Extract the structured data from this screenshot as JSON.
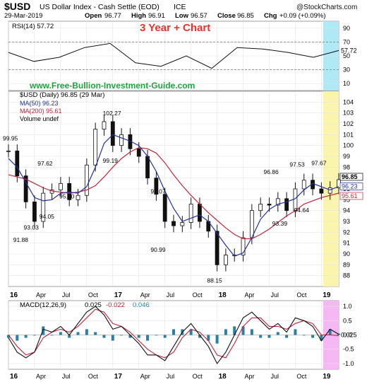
{
  "header": {
    "symbol": "$USD",
    "name": "US Dollar Index - Cash Settle (EOD)",
    "exchange": "ICE",
    "date": "29-Mar-2019",
    "quote_open_label": "Open",
    "quote_open": "96.77",
    "quote_high_label": "High",
    "quote_high": "96.91",
    "quote_low_label": "Low",
    "quote_low": "96.57",
    "quote_close_label": "Close",
    "quote_close": "96.85",
    "quote_chg_label": "Chg",
    "quote_chg": "+0.09 (+0.09%)",
    "brand": "@StockCharts.com"
  },
  "overlay": {
    "title": "3 Year + Chart",
    "site": "www.Free-Bullion-Investment-Guide.com"
  },
  "colors": {
    "rsi_highlight": "#aee9f5",
    "price_highlight": "#faf4ad",
    "macd_highlight": "#f5b8f5",
    "title_red": "#e8332b",
    "site_green": "#18a83a",
    "ma50": "#1f2f9c",
    "ma200": "#c0243c",
    "macd_hist": "#2a7fa6"
  },
  "chart_data": [
    {
      "type": "line",
      "panel": "rsi",
      "legend": "RSI(14) 57.72",
      "ylim": [
        0,
        100
      ],
      "y_ticks": [
        10,
        30,
        50,
        70,
        90
      ],
      "reference_lines": [
        30,
        70
      ],
      "last_value": "57.72",
      "x": [
        "2016-01",
        "2016-04",
        "2016-07",
        "2016-10",
        "2017-01",
        "2017-04",
        "2017-07",
        "2017-10",
        "2018-01",
        "2018-04",
        "2018-07",
        "2018-10",
        "2019-01",
        "2019-03"
      ],
      "values": [
        55,
        42,
        48,
        62,
        68,
        40,
        35,
        50,
        32,
        62,
        60,
        55,
        48,
        57.72
      ]
    },
    {
      "type": "candlestick",
      "panel": "price",
      "legend": {
        "price": "$USD (Daily) 96.85 (29 Mar)",
        "ma50": "MA(50) 96.23",
        "ma200": "MA(200) 95.61",
        "volume": "Volume undef"
      },
      "ylim": [
        87,
        105
      ],
      "y_ticks": [
        88,
        89,
        90,
        91,
        92,
        93,
        94,
        95,
        96,
        97,
        98,
        99,
        100,
        101,
        102,
        103,
        104
      ],
      "last_labels": [
        "96.85",
        "96.23",
        "95.61"
      ],
      "x_ticks": [
        "16",
        "Apr",
        "Jul",
        "Oct",
        "17",
        "Apr",
        "Jul",
        "Oct",
        "18",
        "Apr",
        "Jul",
        "Oct",
        "19"
      ],
      "annotations": [
        "99.95",
        "97.62",
        "95.90",
        "94.05",
        "93.03",
        "91.88",
        "102.27",
        "99.19",
        "95.07",
        "90.99",
        "88.15",
        "96.86",
        "97.53",
        "97.67",
        "93.39",
        "94.64"
      ],
      "close": {
        "x": [
          "2016-01",
          "2016-02",
          "2016-03",
          "2016-04",
          "2016-05",
          "2016-06",
          "2016-07",
          "2016-08",
          "2016-09",
          "2016-10",
          "2016-11",
          "2016-12",
          "2017-01",
          "2017-02",
          "2017-03",
          "2017-04",
          "2017-05",
          "2017-06",
          "2017-07",
          "2017-08",
          "2017-09",
          "2017-10",
          "2017-11",
          "2017-12",
          "2018-01",
          "2018-02",
          "2018-03",
          "2018-04",
          "2018-05",
          "2018-06",
          "2018-07",
          "2018-08",
          "2018-09",
          "2018-10",
          "2018-11",
          "2018-12",
          "2019-01",
          "2019-02",
          "2019-03"
        ],
        "values": [
          99.5,
          97.2,
          94.8,
          93.0,
          95.6,
          95.9,
          96.5,
          95.0,
          95.4,
          98.2,
          101.5,
          102.2,
          100.0,
          101.0,
          99.7,
          99.0,
          97.0,
          95.5,
          93.0,
          92.6,
          92.9,
          94.6,
          93.0,
          92.1,
          89.0,
          89.9,
          89.9,
          91.5,
          94.0,
          94.6,
          94.5,
          95.1,
          94.0,
          96.0,
          96.8,
          96.0,
          95.6,
          96.1,
          96.85
        ]
      },
      "ma50": [
        98.8,
        98.0,
        96.6,
        95.2,
        94.9,
        95.0,
        95.6,
        95.7,
        95.6,
        96.2,
        98.0,
        100.2,
        101.0,
        100.7,
        100.4,
        100.0,
        99.0,
        97.6,
        95.8,
        94.2,
        93.0,
        93.3,
        93.6,
        93.0,
        91.9,
        90.8,
        89.8,
        90.1,
        91.5,
        93.2,
        94.1,
        94.6,
        94.8,
        95.1,
        95.9,
        96.5,
        96.2,
        95.9,
        96.23
      ],
      "ma200": [
        97.3,
        97.1,
        96.9,
        96.5,
        96.1,
        95.8,
        95.7,
        95.6,
        95.7,
        95.9,
        96.3,
        97.1,
        98.0,
        98.8,
        99.4,
        99.8,
        99.7,
        99.3,
        98.4,
        97.3,
        96.3,
        95.4,
        94.6,
        93.8,
        93.1,
        92.4,
        91.8,
        91.4,
        91.4,
        91.8,
        92.3,
        92.9,
        93.5,
        94.0,
        94.6,
        94.9,
        95.2,
        95.4,
        95.61
      ]
    },
    {
      "type": "line",
      "panel": "macd",
      "legend": {
        "label": "MACD(12,26,9)",
        "macd": "0.025",
        "signal": "-0.022",
        "histogram": "0.046"
      },
      "ylim": [
        -1.2,
        1.2
      ],
      "y_ticks": [
        1.0,
        0.5,
        0.0,
        -0.5,
        -1.0
      ],
      "y_tick_labels": [
        "1.0",
        "0.5",
        "0.0",
        "-0.5",
        "-1.0"
      ],
      "last_value": "0.025",
      "x_ticks": [
        "16",
        "Apr",
        "Jul",
        "Oct",
        "17",
        "Apr",
        "Jul",
        "Oct",
        "18",
        "Apr",
        "Jul",
        "Oct",
        "19"
      ],
      "macd": [
        -0.1,
        -0.6,
        -0.8,
        -0.6,
        0.2,
        0.1,
        0.3,
        0.0,
        0.4,
        0.8,
        1.0,
        0.7,
        0.2,
        0.3,
        0.0,
        -0.3,
        -0.7,
        -0.7,
        -0.9,
        -0.4,
        0.1,
        0.4,
        0.0,
        -0.4,
        -1.0,
        -0.6,
        0.0,
        0.6,
        0.8,
        0.5,
        0.2,
        0.4,
        0.1,
        0.6,
        0.5,
        0.3,
        -0.2,
        0.2,
        0.025
      ],
      "signal": [
        0.0,
        -0.4,
        -0.7,
        -0.6,
        -0.1,
        0.1,
        0.2,
        0.1,
        0.3,
        0.6,
        0.9,
        0.8,
        0.4,
        0.3,
        0.1,
        -0.2,
        -0.5,
        -0.7,
        -0.8,
        -0.6,
        -0.1,
        0.2,
        0.1,
        -0.2,
        -0.7,
        -0.8,
        -0.3,
        0.3,
        0.6,
        0.6,
        0.3,
        0.3,
        0.2,
        0.4,
        0.5,
        0.4,
        0.0,
        0.0,
        -0.022
      ]
    }
  ]
}
